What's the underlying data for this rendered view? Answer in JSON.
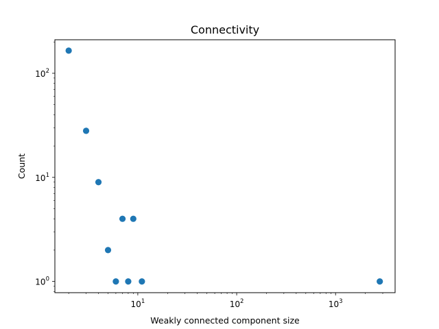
{
  "chart_data": {
    "type": "scatter",
    "title": "Connectivity",
    "xlabel": "Weakly connected component size",
    "ylabel": "Count",
    "xscale": "log",
    "yscale": "log",
    "xlim": [
      1.45,
      4000
    ],
    "ylim": [
      0.78,
      210
    ],
    "grid": false,
    "marker_color": "#1f77b4",
    "x_ticks": [
      {
        "base": "10",
        "exp": "1",
        "value": 10
      },
      {
        "base": "10",
        "exp": "2",
        "value": 100
      },
      {
        "base": "10",
        "exp": "3",
        "value": 1000
      }
    ],
    "y_ticks": [
      {
        "base": "10",
        "exp": "0",
        "value": 1
      },
      {
        "base": "10",
        "exp": "1",
        "value": 10
      },
      {
        "base": "10",
        "exp": "2",
        "value": 100
      }
    ],
    "points": [
      {
        "x": 2,
        "y": 165
      },
      {
        "x": 3,
        "y": 28
      },
      {
        "x": 4,
        "y": 9
      },
      {
        "x": 5,
        "y": 2
      },
      {
        "x": 6,
        "y": 1
      },
      {
        "x": 7,
        "y": 4
      },
      {
        "x": 8,
        "y": 1
      },
      {
        "x": 9,
        "y": 4
      },
      {
        "x": 11,
        "y": 1
      },
      {
        "x": 2800,
        "y": 1
      }
    ]
  }
}
